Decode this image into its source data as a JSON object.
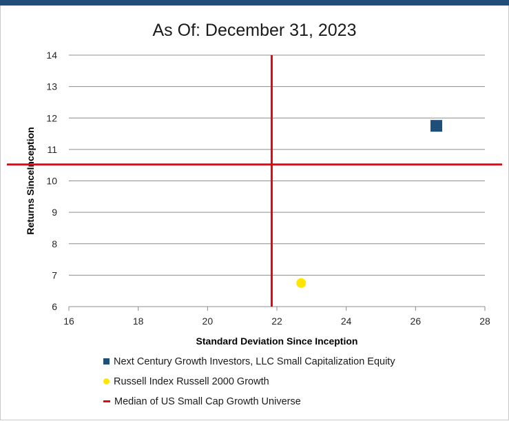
{
  "colors": {
    "header_band": "#1f4e79",
    "fund": "#1f4e79",
    "index": "#ffe600",
    "median": "#e30613",
    "gridline": "#8c8c8c"
  },
  "chart_data": {
    "type": "scatter",
    "title": "As Of: December 31, 2023",
    "xlabel": "Standard Deviation Since Inception",
    "ylabel": "Returns SinceInception",
    "xlim": [
      16,
      28
    ],
    "ylim": [
      6,
      14
    ],
    "x_ticks": [
      16,
      18,
      20,
      22,
      24,
      26,
      28
    ],
    "y_ticks": [
      6,
      7,
      8,
      9,
      10,
      11,
      12,
      13,
      14
    ],
    "grid": "horizontal",
    "legend_position": "bottom",
    "series": [
      {
        "name": "Next Century Growth Investors, LLC Small Capitalization Equity",
        "marker": "square",
        "color": "#1f4e79",
        "points": [
          {
            "x": 26.6,
            "y": 11.75
          }
        ]
      },
      {
        "name": "Russell Index Russell 2000 Growth",
        "marker": "circle",
        "color": "#ffe600",
        "points": [
          {
            "x": 22.7,
            "y": 6.75
          }
        ]
      }
    ],
    "median_lines": {
      "name": "Median of US Small Cap Growth Universe",
      "color": "#e30613",
      "x": 21.85,
      "y": 10.52
    }
  }
}
